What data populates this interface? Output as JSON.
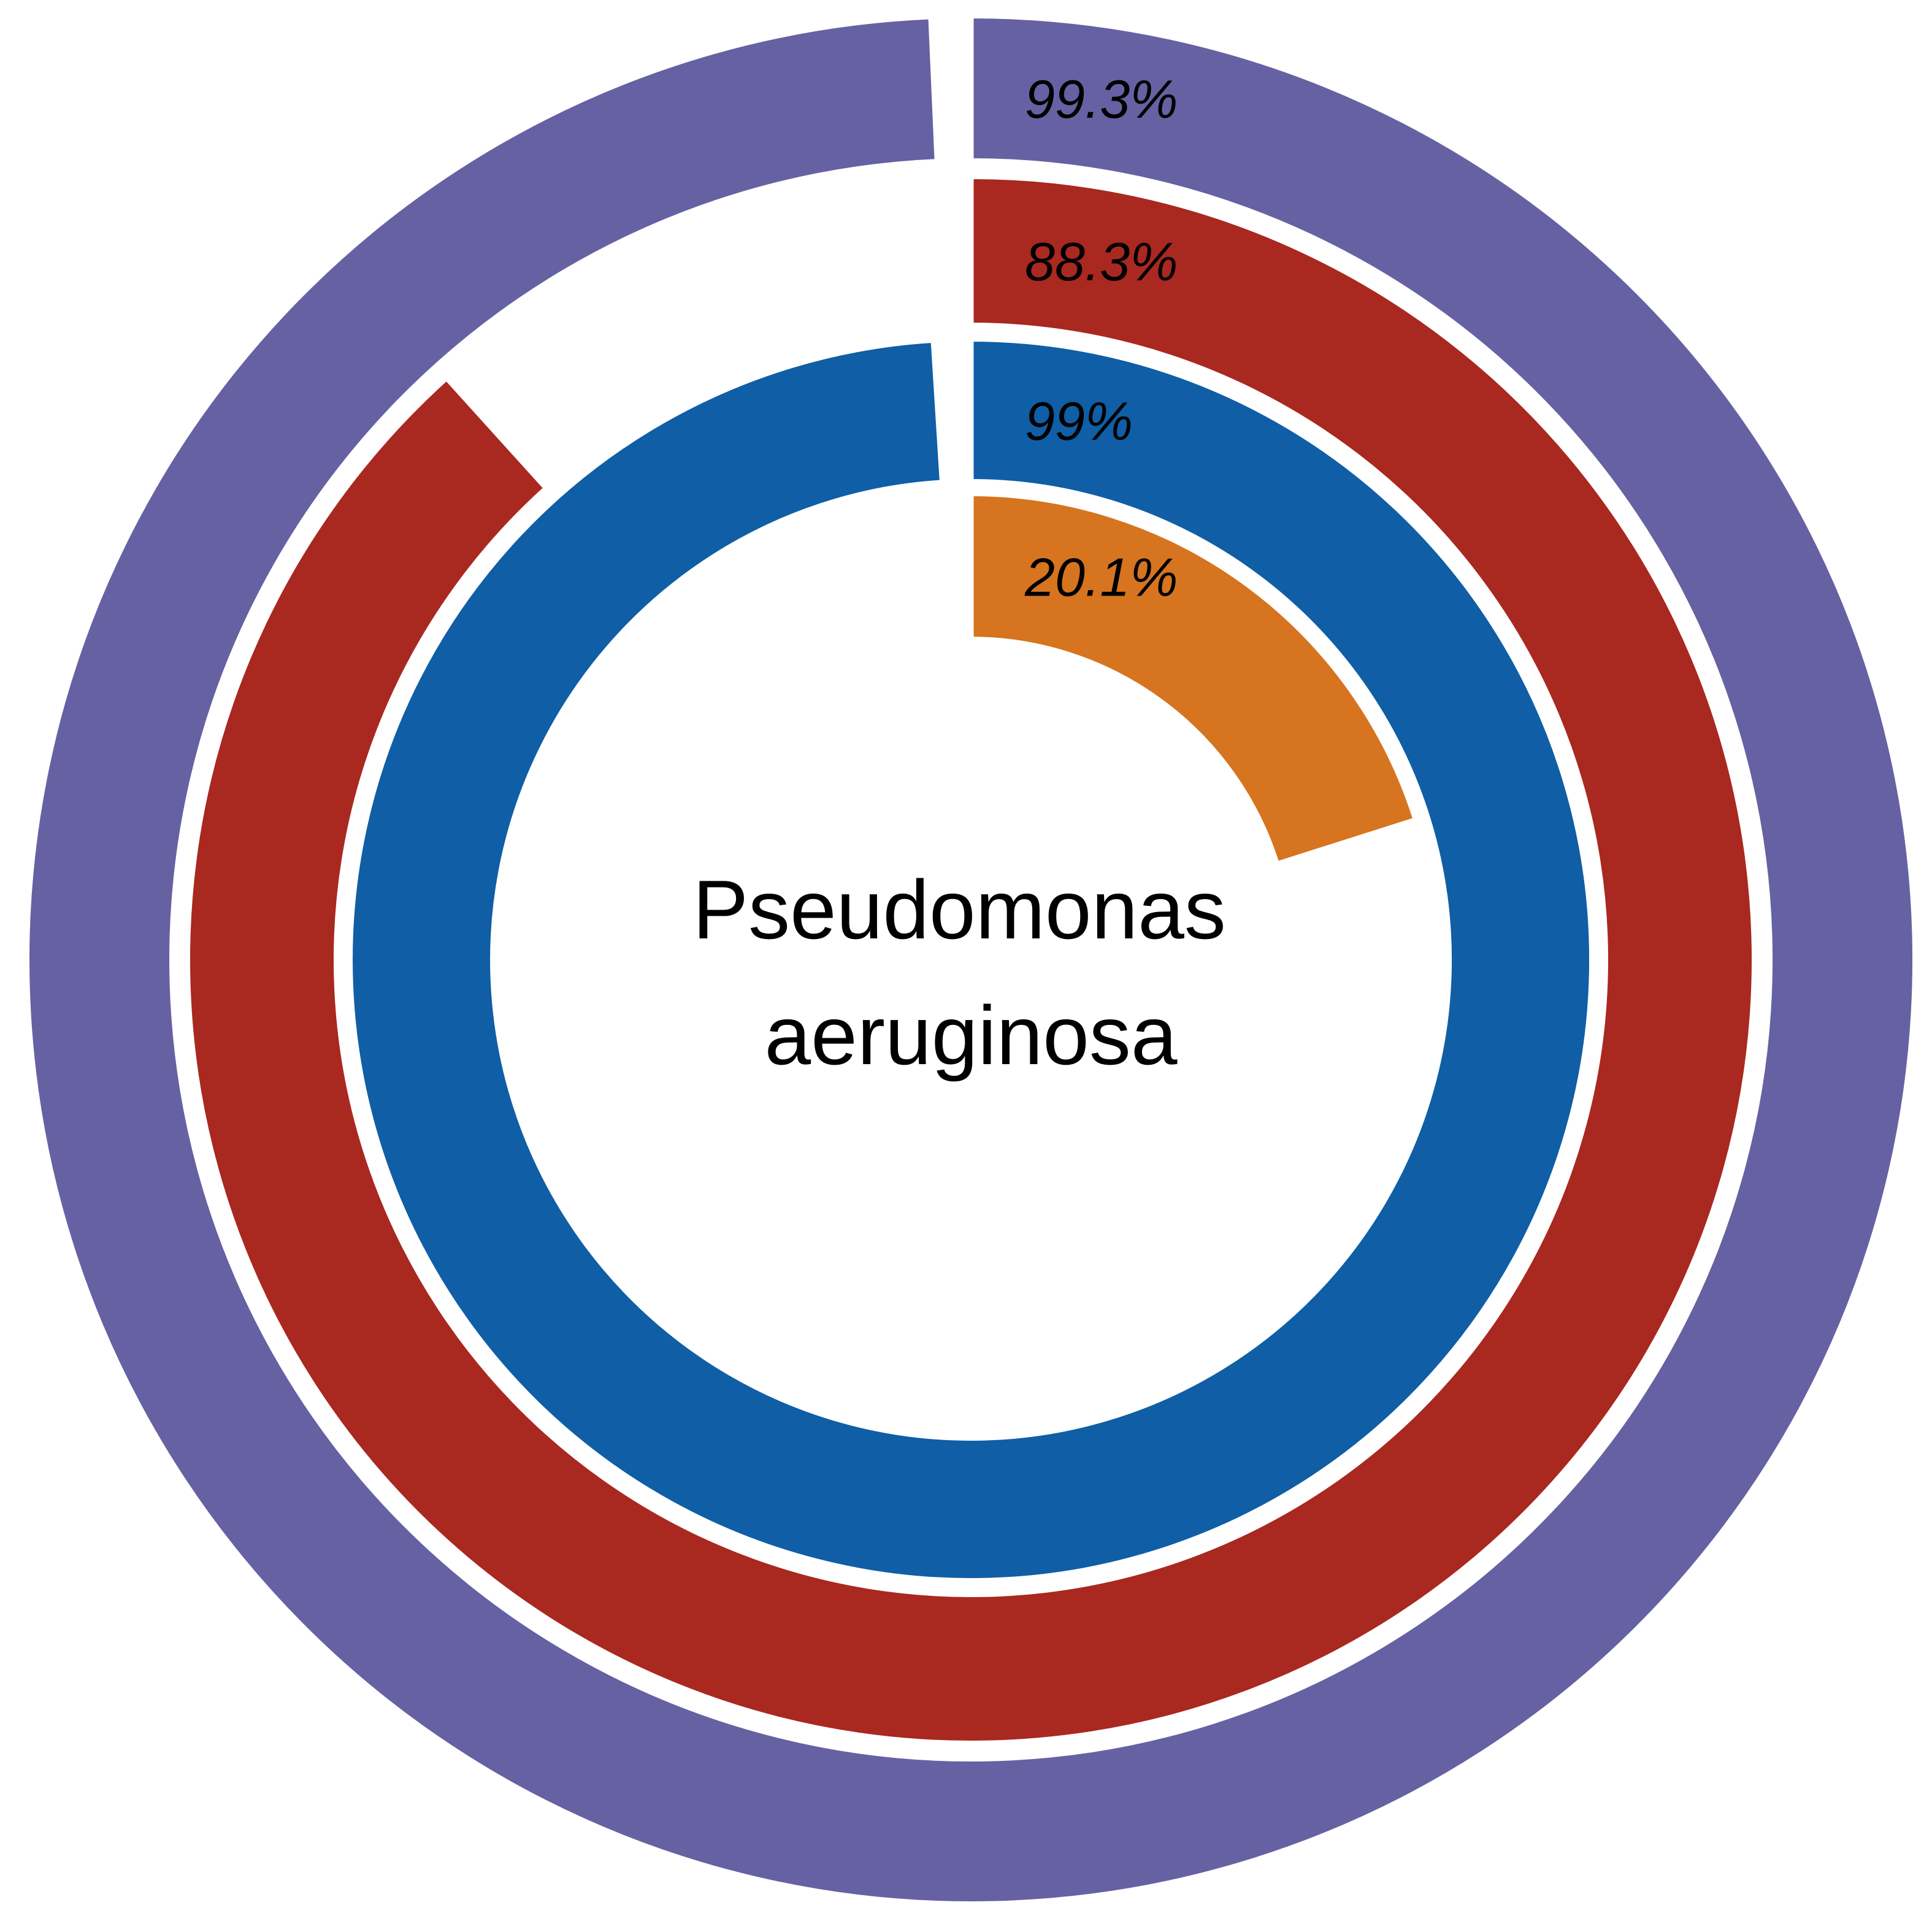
{
  "chart_data": {
    "type": "radial-bar",
    "center_label": [
      "Pseudomonas",
      "aeruginosa"
    ],
    "rings": [
      {
        "value": 99.3,
        "label": "99.3%",
        "color": "#6661a2"
      },
      {
        "value": 88.3,
        "label": "88.3%",
        "color": "#a92820"
      },
      {
        "value": 99,
        "label": "99%",
        "color": "#0f5ea6"
      },
      {
        "value": 20.1,
        "label": "20.1%",
        "color": "#d6741f"
      }
    ],
    "max": 100,
    "direction": "clockwise from top"
  }
}
